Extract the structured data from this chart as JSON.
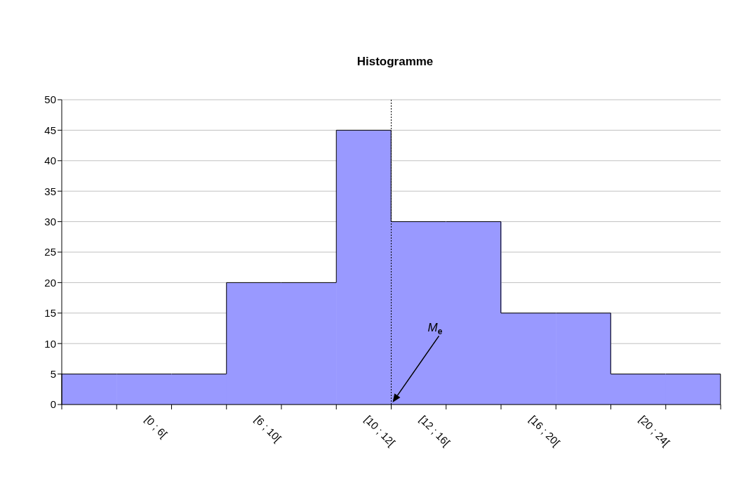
{
  "chart_data": {
    "type": "bar",
    "title": "Histogramme",
    "categories": [
      null,
      "[0 ; 6[",
      null,
      "[6 ; 10[",
      null,
      "[10 ; 12[",
      "[12 ; 16[",
      null,
      "[16 ; 20[",
      null,
      "[20 ; 24[",
      null
    ],
    "values": [
      5,
      5,
      5,
      20,
      20,
      45,
      30,
      30,
      15,
      15,
      5,
      5
    ],
    "color": "#9999ff",
    "ylim": [
      0,
      50
    ],
    "yticks": [
      0,
      5,
      10,
      15,
      20,
      25,
      30,
      35,
      40,
      45,
      50
    ],
    "grid": "y",
    "ref_lines": [
      {
        "axis": "x",
        "value": "[10 ; 12[",
        "label": "M$_{e}$",
        "line_style": "dotted",
        "color": "#000000"
      }
    ]
  }
}
